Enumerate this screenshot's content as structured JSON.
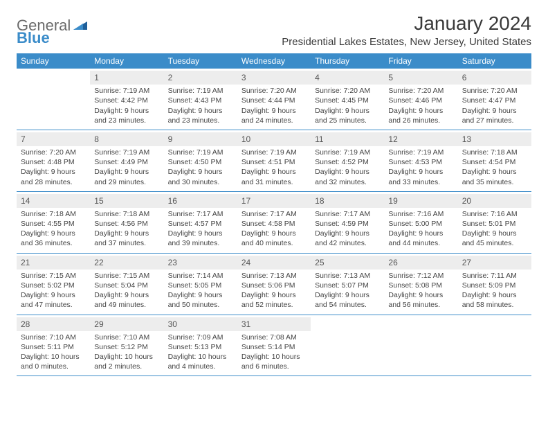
{
  "logo": {
    "text1": "General",
    "text2": "Blue"
  },
  "title": "January 2024",
  "location": "Presidential Lakes Estates, New Jersey, United States",
  "colors": {
    "header_bg": "#3b8cc9",
    "daynum_bg": "#ededed",
    "border": "#3b8cc9",
    "text": "#444444",
    "logo_gray": "#6a6a6a",
    "logo_blue": "#3b8cc9"
  },
  "typography": {
    "title_fontsize": 28,
    "location_fontsize": 15,
    "weekday_fontsize": 12,
    "body_fontsize": 10.5
  },
  "weekdays": [
    "Sunday",
    "Monday",
    "Tuesday",
    "Wednesday",
    "Thursday",
    "Friday",
    "Saturday"
  ],
  "weeks": [
    [
      null,
      {
        "n": "1",
        "sr": "Sunrise: 7:19 AM",
        "ss": "Sunset: 4:42 PM",
        "d1": "Daylight: 9 hours",
        "d2": "and 23 minutes."
      },
      {
        "n": "2",
        "sr": "Sunrise: 7:19 AM",
        "ss": "Sunset: 4:43 PM",
        "d1": "Daylight: 9 hours",
        "d2": "and 23 minutes."
      },
      {
        "n": "3",
        "sr": "Sunrise: 7:20 AM",
        "ss": "Sunset: 4:44 PM",
        "d1": "Daylight: 9 hours",
        "d2": "and 24 minutes."
      },
      {
        "n": "4",
        "sr": "Sunrise: 7:20 AM",
        "ss": "Sunset: 4:45 PM",
        "d1": "Daylight: 9 hours",
        "d2": "and 25 minutes."
      },
      {
        "n": "5",
        "sr": "Sunrise: 7:20 AM",
        "ss": "Sunset: 4:46 PM",
        "d1": "Daylight: 9 hours",
        "d2": "and 26 minutes."
      },
      {
        "n": "6",
        "sr": "Sunrise: 7:20 AM",
        "ss": "Sunset: 4:47 PM",
        "d1": "Daylight: 9 hours",
        "d2": "and 27 minutes."
      }
    ],
    [
      {
        "n": "7",
        "sr": "Sunrise: 7:20 AM",
        "ss": "Sunset: 4:48 PM",
        "d1": "Daylight: 9 hours",
        "d2": "and 28 minutes."
      },
      {
        "n": "8",
        "sr": "Sunrise: 7:19 AM",
        "ss": "Sunset: 4:49 PM",
        "d1": "Daylight: 9 hours",
        "d2": "and 29 minutes."
      },
      {
        "n": "9",
        "sr": "Sunrise: 7:19 AM",
        "ss": "Sunset: 4:50 PM",
        "d1": "Daylight: 9 hours",
        "d2": "and 30 minutes."
      },
      {
        "n": "10",
        "sr": "Sunrise: 7:19 AM",
        "ss": "Sunset: 4:51 PM",
        "d1": "Daylight: 9 hours",
        "d2": "and 31 minutes."
      },
      {
        "n": "11",
        "sr": "Sunrise: 7:19 AM",
        "ss": "Sunset: 4:52 PM",
        "d1": "Daylight: 9 hours",
        "d2": "and 32 minutes."
      },
      {
        "n": "12",
        "sr": "Sunrise: 7:19 AM",
        "ss": "Sunset: 4:53 PM",
        "d1": "Daylight: 9 hours",
        "d2": "and 33 minutes."
      },
      {
        "n": "13",
        "sr": "Sunrise: 7:18 AM",
        "ss": "Sunset: 4:54 PM",
        "d1": "Daylight: 9 hours",
        "d2": "and 35 minutes."
      }
    ],
    [
      {
        "n": "14",
        "sr": "Sunrise: 7:18 AM",
        "ss": "Sunset: 4:55 PM",
        "d1": "Daylight: 9 hours",
        "d2": "and 36 minutes."
      },
      {
        "n": "15",
        "sr": "Sunrise: 7:18 AM",
        "ss": "Sunset: 4:56 PM",
        "d1": "Daylight: 9 hours",
        "d2": "and 37 minutes."
      },
      {
        "n": "16",
        "sr": "Sunrise: 7:17 AM",
        "ss": "Sunset: 4:57 PM",
        "d1": "Daylight: 9 hours",
        "d2": "and 39 minutes."
      },
      {
        "n": "17",
        "sr": "Sunrise: 7:17 AM",
        "ss": "Sunset: 4:58 PM",
        "d1": "Daylight: 9 hours",
        "d2": "and 40 minutes."
      },
      {
        "n": "18",
        "sr": "Sunrise: 7:17 AM",
        "ss": "Sunset: 4:59 PM",
        "d1": "Daylight: 9 hours",
        "d2": "and 42 minutes."
      },
      {
        "n": "19",
        "sr": "Sunrise: 7:16 AM",
        "ss": "Sunset: 5:00 PM",
        "d1": "Daylight: 9 hours",
        "d2": "and 44 minutes."
      },
      {
        "n": "20",
        "sr": "Sunrise: 7:16 AM",
        "ss": "Sunset: 5:01 PM",
        "d1": "Daylight: 9 hours",
        "d2": "and 45 minutes."
      }
    ],
    [
      {
        "n": "21",
        "sr": "Sunrise: 7:15 AM",
        "ss": "Sunset: 5:02 PM",
        "d1": "Daylight: 9 hours",
        "d2": "and 47 minutes."
      },
      {
        "n": "22",
        "sr": "Sunrise: 7:15 AM",
        "ss": "Sunset: 5:04 PM",
        "d1": "Daylight: 9 hours",
        "d2": "and 49 minutes."
      },
      {
        "n": "23",
        "sr": "Sunrise: 7:14 AM",
        "ss": "Sunset: 5:05 PM",
        "d1": "Daylight: 9 hours",
        "d2": "and 50 minutes."
      },
      {
        "n": "24",
        "sr": "Sunrise: 7:13 AM",
        "ss": "Sunset: 5:06 PM",
        "d1": "Daylight: 9 hours",
        "d2": "and 52 minutes."
      },
      {
        "n": "25",
        "sr": "Sunrise: 7:13 AM",
        "ss": "Sunset: 5:07 PM",
        "d1": "Daylight: 9 hours",
        "d2": "and 54 minutes."
      },
      {
        "n": "26",
        "sr": "Sunrise: 7:12 AM",
        "ss": "Sunset: 5:08 PM",
        "d1": "Daylight: 9 hours",
        "d2": "and 56 minutes."
      },
      {
        "n": "27",
        "sr": "Sunrise: 7:11 AM",
        "ss": "Sunset: 5:09 PM",
        "d1": "Daylight: 9 hours",
        "d2": "and 58 minutes."
      }
    ],
    [
      {
        "n": "28",
        "sr": "Sunrise: 7:10 AM",
        "ss": "Sunset: 5:11 PM",
        "d1": "Daylight: 10 hours",
        "d2": "and 0 minutes."
      },
      {
        "n": "29",
        "sr": "Sunrise: 7:10 AM",
        "ss": "Sunset: 5:12 PM",
        "d1": "Daylight: 10 hours",
        "d2": "and 2 minutes."
      },
      {
        "n": "30",
        "sr": "Sunrise: 7:09 AM",
        "ss": "Sunset: 5:13 PM",
        "d1": "Daylight: 10 hours",
        "d2": "and 4 minutes."
      },
      {
        "n": "31",
        "sr": "Sunrise: 7:08 AM",
        "ss": "Sunset: 5:14 PM",
        "d1": "Daylight: 10 hours",
        "d2": "and 6 minutes."
      },
      null,
      null,
      null
    ]
  ]
}
